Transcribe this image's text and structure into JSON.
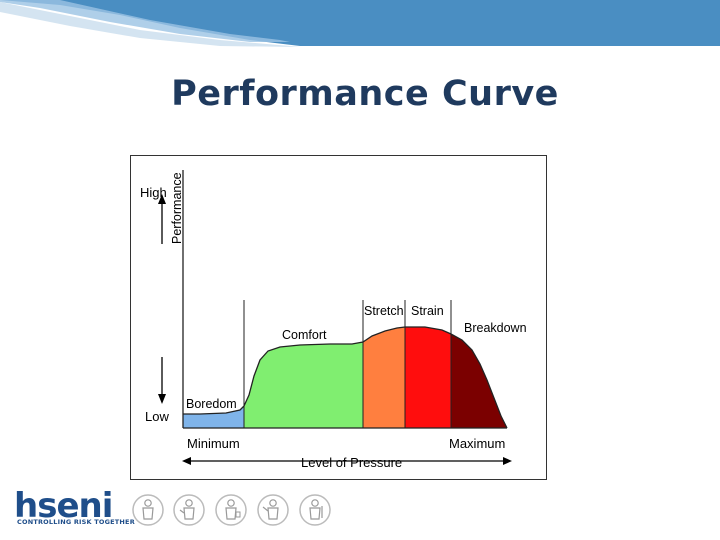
{
  "slide": {
    "title": "Performance Curve"
  },
  "diagram": {
    "y_axis_label": "Performance",
    "y_high_label": "High",
    "y_low_label": "Low",
    "x_axis_label": "Level of Pressure",
    "x_min_label": "Minimum",
    "x_max_label": "Maximum",
    "zones": [
      {
        "label": "Boredom",
        "color": "#7fb4ea"
      },
      {
        "label": "Comfort",
        "color": "#80ee70"
      },
      {
        "label": "Stretch",
        "color": "#ff7f3f"
      },
      {
        "label": "Strain",
        "color": "#ff0d0d"
      },
      {
        "label": "Breakdown",
        "color": "#7b0000"
      }
    ]
  },
  "footer": {
    "logo_text": "hseni",
    "logo_tagline": "CONTROLLING RISK TOGETHER",
    "icons": [
      "worker-icon",
      "worker-with-tools-icon",
      "worker-with-bag-icon",
      "worker-with-wrench-icon",
      "worker-with-equipment-icon"
    ]
  },
  "colors": {
    "banner": "#4a8ec2",
    "title": "#1f3a5e",
    "logo": "#1f4e8a"
  }
}
